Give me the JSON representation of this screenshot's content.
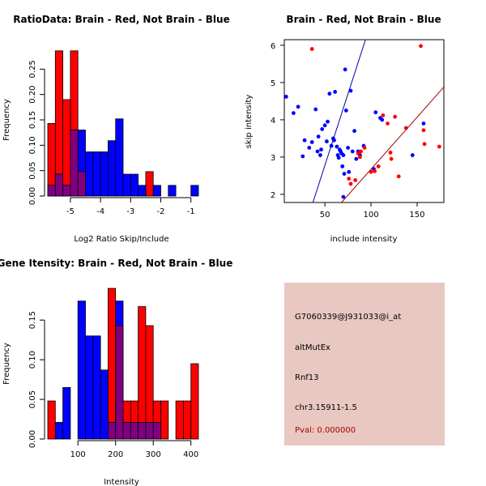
{
  "colors": {
    "red": "#ff0000",
    "blue": "#0000ff",
    "purple": "#800080",
    "line_blue": "#0000aa",
    "line_red": "#aa0000",
    "panel_bg": "#e8c8c0",
    "pval": "#aa0000"
  },
  "chart_data": [
    {
      "type": "histogram",
      "title": "RatioData: Brain - Red, Not Brain - Blue",
      "xlabel": "Log2 Ratio Skip/Include",
      "ylabel": "Frequency",
      "xlim": [
        -5.75,
        -0.75
      ],
      "ylim": [
        0,
        0.3
      ],
      "xticks": [
        -5,
        -4,
        -3,
        -2,
        -1
      ],
      "xtick_labels": [
        "-5",
        "-4",
        "-3",
        "-2",
        "-1"
      ],
      "yticks": [
        0,
        0.05,
        0.1,
        0.15,
        0.2,
        0.25
      ],
      "ytick_labels": [
        "0.00",
        "0.05",
        "0.10",
        "0.15",
        "0.20",
        "0.25"
      ],
      "bin_width": 0.25,
      "series": [
        {
          "name": "Brain",
          "color": "red",
          "bins": [
            {
              "x0": -5.75,
              "x1": -5.5,
              "value": 0.143
            },
            {
              "x0": -5.5,
              "x1": -5.25,
              "value": 0.286
            },
            {
              "x0": -5.25,
              "x1": -5.0,
              "value": 0.19
            },
            {
              "x0": -5.0,
              "x1": -4.75,
              "value": 0.286
            },
            {
              "x0": -4.75,
              "x1": -4.5,
              "value": 0.048
            },
            {
              "x0": -2.5,
              "x1": -2.25,
              "value": 0.048
            }
          ]
        },
        {
          "name": "Not Brain",
          "color": "blue",
          "bins": [
            {
              "x0": -5.75,
              "x1": -5.5,
              "value": 0.021
            },
            {
              "x0": -5.5,
              "x1": -5.25,
              "value": 0.043
            },
            {
              "x0": -5.25,
              "x1": -5.0,
              "value": 0.021
            },
            {
              "x0": -5.0,
              "x1": -4.75,
              "value": 0.13
            },
            {
              "x0": -4.75,
              "x1": -4.5,
              "value": 0.13
            },
            {
              "x0": -4.5,
              "x1": -4.25,
              "value": 0.087
            },
            {
              "x0": -4.25,
              "x1": -4.0,
              "value": 0.087
            },
            {
              "x0": -4.0,
              "x1": -3.75,
              "value": 0.087
            },
            {
              "x0": -3.75,
              "x1": -3.5,
              "value": 0.109
            },
            {
              "x0": -3.5,
              "x1": -3.25,
              "value": 0.152
            },
            {
              "x0": -3.25,
              "x1": -3.0,
              "value": 0.043
            },
            {
              "x0": -3.0,
              "x1": -2.75,
              "value": 0.043
            },
            {
              "x0": -2.75,
              "x1": -2.5,
              "value": 0.021
            },
            {
              "x0": -2.25,
              "x1": -2.0,
              "value": 0.021
            },
            {
              "x0": -1.75,
              "x1": -1.5,
              "value": 0.021
            },
            {
              "x0": -1.0,
              "x1": -0.75,
              "value": 0.021
            }
          ]
        }
      ]
    },
    {
      "type": "scatter",
      "title": "Brain - Red, Not Brain - Blue",
      "xlabel": "include intensity",
      "ylabel": "skip intensity",
      "xlim": [
        6,
        179
      ],
      "ylim": [
        1.78,
        6.15
      ],
      "xticks": [
        50,
        100,
        150
      ],
      "xtick_labels": [
        "50",
        "100",
        "150"
      ],
      "yticks": [
        2,
        3,
        4,
        5,
        6
      ],
      "ytick_labels": [
        "2",
        "3",
        "4",
        "5",
        "6"
      ],
      "series": [
        {
          "name": "Not Brain",
          "color": "blue",
          "points": [
            [
              8,
              4.62
            ],
            [
              16,
              4.18
            ],
            [
              21,
              4.35
            ],
            [
              26,
              3.02
            ],
            [
              28,
              3.45
            ],
            [
              33,
              3.25
            ],
            [
              36,
              3.4
            ],
            [
              40,
              4.28
            ],
            [
              42,
              3.15
            ],
            [
              43,
              3.55
            ],
            [
              45,
              3.05
            ],
            [
              46,
              3.2
            ],
            [
              47,
              3.75
            ],
            [
              50,
              3.85
            ],
            [
              52,
              3.42
            ],
            [
              53,
              3.95
            ],
            [
              55,
              4.7
            ],
            [
              57,
              3.3
            ],
            [
              59,
              3.5
            ],
            [
              60,
              3.45
            ],
            [
              61,
              4.75
            ],
            [
              63,
              3.28
            ],
            [
              64,
              3.05
            ],
            [
              65,
              2.98
            ],
            [
              66,
              3.2
            ],
            [
              67,
              3.15
            ],
            [
              68,
              3.1
            ],
            [
              69,
              2.75
            ],
            [
              70,
              3.05
            ],
            [
              71,
              2.55
            ],
            [
              72,
              5.35
            ],
            [
              73,
              4.25
            ],
            [
              75,
              3.25
            ],
            [
              76,
              2.6
            ],
            [
              78,
              4.78
            ],
            [
              80,
              3.15
            ],
            [
              82,
              3.7
            ],
            [
              84,
              2.95
            ],
            [
              86,
              3.15
            ],
            [
              88,
              3.05
            ],
            [
              70,
              1.93
            ],
            [
              92,
              3.3
            ],
            [
              103,
              2.68
            ],
            [
              105,
              4.2
            ],
            [
              110,
              4.05
            ],
            [
              112,
              4.0
            ],
            [
              145,
              3.05
            ],
            [
              157,
              3.9
            ]
          ]
        },
        {
          "name": "Brain",
          "color": "red",
          "points": [
            [
              36,
              5.9
            ],
            [
              76,
              2.42
            ],
            [
              78,
              2.28
            ],
            [
              83,
              2.38
            ],
            [
              86,
              3.1
            ],
            [
              88,
              3.0
            ],
            [
              89,
              3.15
            ],
            [
              93,
              3.25
            ],
            [
              100,
              2.6
            ],
            [
              104,
              2.62
            ],
            [
              108,
              2.75
            ],
            [
              113,
              4.12
            ],
            [
              118,
              3.9
            ],
            [
              121,
              3.12
            ],
            [
              122,
              2.95
            ],
            [
              126,
              4.08
            ],
            [
              130,
              2.48
            ],
            [
              138,
              3.78
            ],
            [
              154,
              5.98
            ],
            [
              157,
              3.72
            ],
            [
              158,
              3.35
            ],
            [
              174,
              3.28
            ]
          ]
        }
      ],
      "lines": [
        {
          "name": "Not Brain fit",
          "color": "line_blue",
          "x": [
            37,
            94
          ],
          "y": [
            1.78,
            6.15
          ]
        },
        {
          "name": "Brain fit",
          "color": "line_red",
          "x": [
            68,
            179
          ],
          "y": [
            1.78,
            4.88
          ]
        }
      ]
    },
    {
      "type": "histogram",
      "title": "Gene Itensity: Brain - Red, Not Brain - Blue",
      "xlabel": "Intensity",
      "ylabel": "Frequency",
      "xlim": [
        20,
        420
      ],
      "ylim": [
        0,
        0.19
      ],
      "xticks": [
        100,
        200,
        300,
        400
      ],
      "xtick_labels": [
        "100",
        "200",
        "300",
        "400"
      ],
      "yticks": [
        0,
        0.05,
        0.1,
        0.15
      ],
      "ytick_labels": [
        "0.00",
        "0.05",
        "0.10",
        "0.15"
      ],
      "bin_width": 20,
      "series": [
        {
          "name": "Not Brain",
          "color": "blue",
          "bins": [
            {
              "x0": 40,
              "x1": 60,
              "value": 0.021
            },
            {
              "x0": 60,
              "x1": 80,
              "value": 0.065
            },
            {
              "x0": 100,
              "x1": 120,
              "value": 0.174
            },
            {
              "x0": 120,
              "x1": 140,
              "value": 0.13
            },
            {
              "x0": 140,
              "x1": 160,
              "value": 0.13
            },
            {
              "x0": 160,
              "x1": 180,
              "value": 0.087
            },
            {
              "x0": 180,
              "x1": 200,
              "value": 0.021
            },
            {
              "x0": 200,
              "x1": 220,
              "value": 0.174
            },
            {
              "x0": 220,
              "x1": 240,
              "value": 0.021
            },
            {
              "x0": 240,
              "x1": 260,
              "value": 0.021
            },
            {
              "x0": 260,
              "x1": 280,
              "value": 0.021
            },
            {
              "x0": 280,
              "x1": 300,
              "value": 0.021
            },
            {
              "x0": 300,
              "x1": 320,
              "value": 0.021
            }
          ]
        },
        {
          "name": "Brain",
          "color": "red",
          "bins": [
            {
              "x0": 20,
              "x1": 40,
              "value": 0.048
            },
            {
              "x0": 180,
              "x1": 200,
              "value": 0.19
            },
            {
              "x0": 200,
              "x1": 220,
              "value": 0.143
            },
            {
              "x0": 220,
              "x1": 240,
              "value": 0.048
            },
            {
              "x0": 240,
              "x1": 260,
              "value": 0.048
            },
            {
              "x0": 260,
              "x1": 280,
              "value": 0.167
            },
            {
              "x0": 280,
              "x1": 300,
              "value": 0.143
            },
            {
              "x0": 300,
              "x1": 320,
              "value": 0.048
            },
            {
              "x0": 320,
              "x1": 340,
              "value": 0.048
            },
            {
              "x0": 360,
              "x1": 380,
              "value": 0.048
            },
            {
              "x0": 380,
              "x1": 400,
              "value": 0.048
            },
            {
              "x0": 400,
              "x1": 420,
              "value": 0.095
            }
          ]
        }
      ]
    }
  ],
  "info": {
    "probe": "G7060339@J931033@i_at",
    "event_type": "altMutEx",
    "gene": "Rnf13",
    "location": "chr3.15911-1.5",
    "pval": "Pval: 0.000000"
  }
}
